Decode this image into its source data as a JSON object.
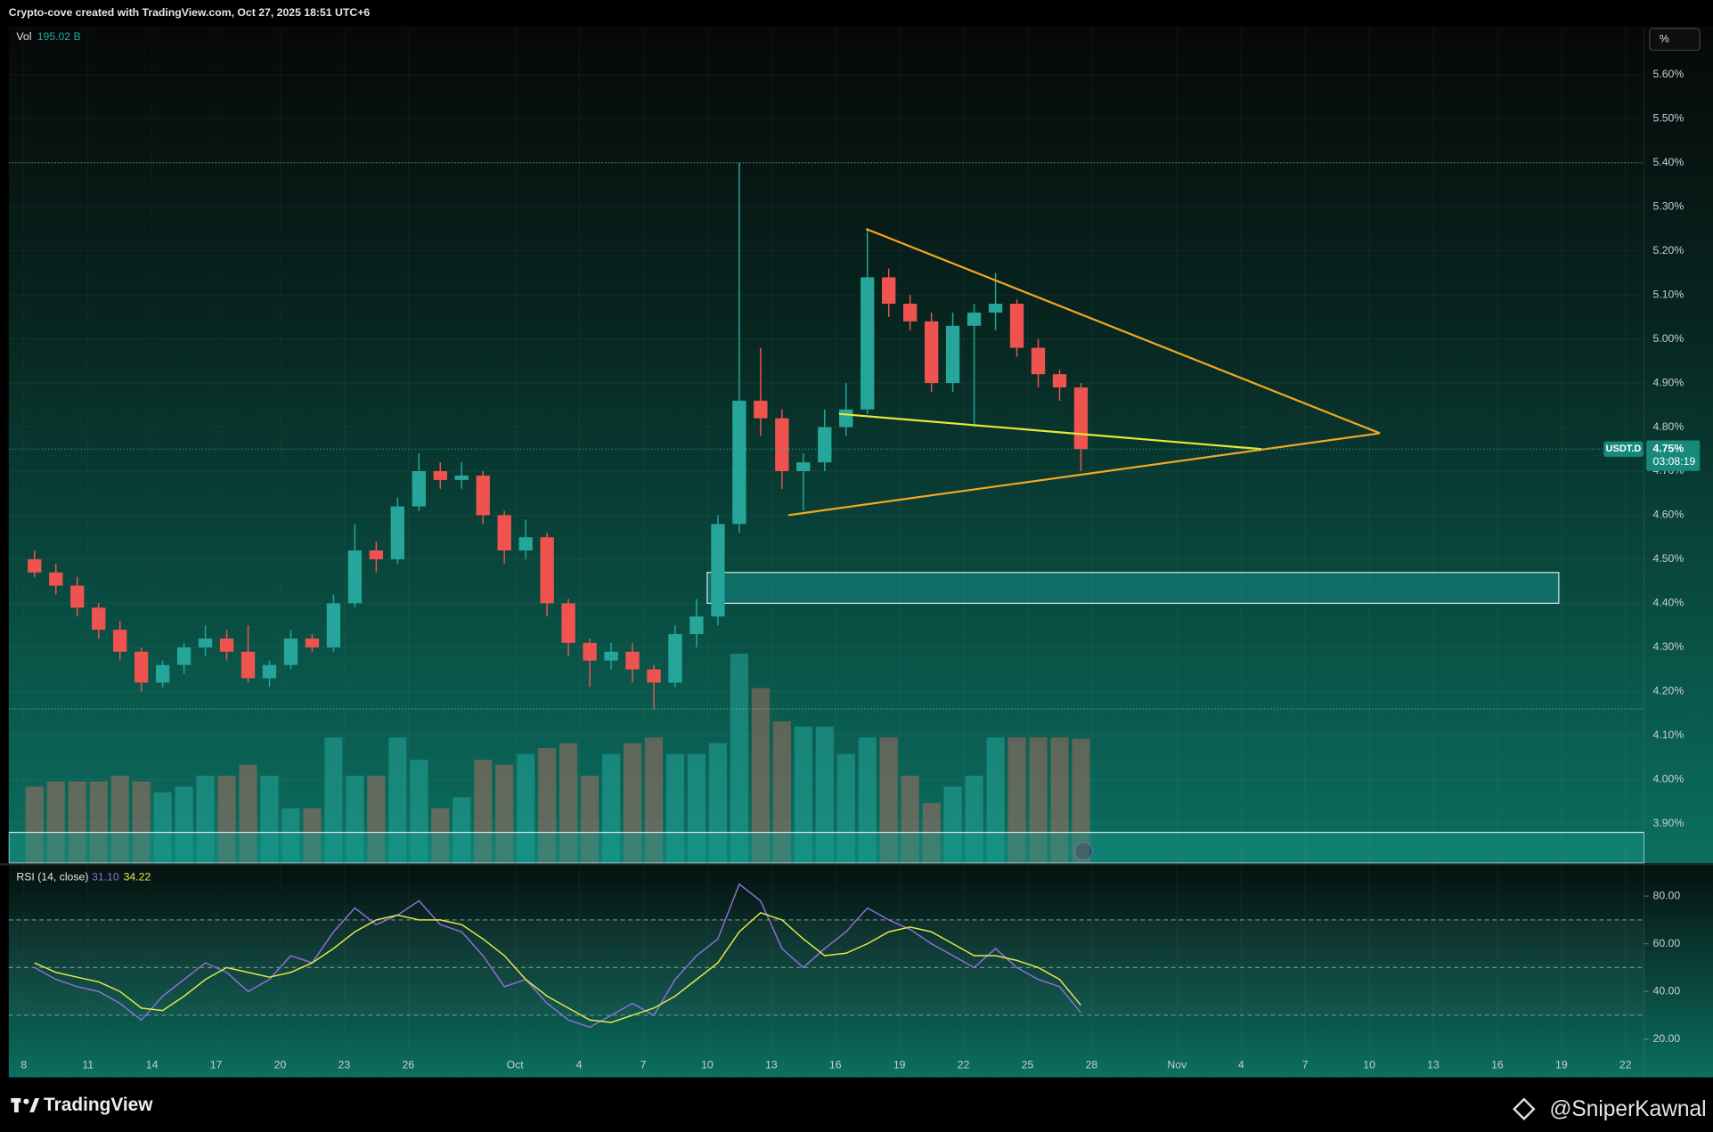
{
  "header": {
    "text": "Crypto-cove created with TradingView.com, Oct 27, 2025 18:51 UTC+6",
    "scale_button": "%"
  },
  "chart_data": [
    {
      "type": "candlestick",
      "symbol": "USDT.D",
      "price_label": "4.75%",
      "countdown": "03:08:19",
      "up_color": "#26a69a",
      "down_color": "#ef5350",
      "x": [
        "2025-09-08",
        "2025-09-09",
        "2025-09-10",
        "2025-09-11",
        "2025-09-12",
        "2025-09-13",
        "2025-09-14",
        "2025-09-15",
        "2025-09-16",
        "2025-09-17",
        "2025-09-18",
        "2025-09-19",
        "2025-09-20",
        "2025-09-21",
        "2025-09-22",
        "2025-09-23",
        "2025-09-24",
        "2025-09-25",
        "2025-09-26",
        "2025-09-27",
        "2025-09-28",
        "2025-09-29",
        "2025-09-30",
        "2025-10-01",
        "2025-10-02",
        "2025-10-03",
        "2025-10-04",
        "2025-10-05",
        "2025-10-06",
        "2025-10-07",
        "2025-10-08",
        "2025-10-09",
        "2025-10-10",
        "2025-10-11",
        "2025-10-12",
        "2025-10-13",
        "2025-10-14",
        "2025-10-15",
        "2025-10-16",
        "2025-10-17",
        "2025-10-18",
        "2025-10-19",
        "2025-10-20",
        "2025-10-21",
        "2025-10-22",
        "2025-10-23",
        "2025-10-24",
        "2025-10-25",
        "2025-10-26",
        "2025-10-27"
      ],
      "open": [
        4.5,
        4.47,
        4.44,
        4.39,
        4.34,
        4.29,
        4.22,
        4.26,
        4.3,
        4.32,
        4.29,
        4.23,
        4.26,
        4.32,
        4.3,
        4.4,
        4.52,
        4.5,
        4.62,
        4.7,
        4.68,
        4.69,
        4.6,
        4.52,
        4.55,
        4.4,
        4.31,
        4.27,
        4.29,
        4.25,
        4.22,
        4.33,
        4.37,
        4.58,
        4.86,
        4.82,
        4.7,
        4.72,
        4.8,
        4.84,
        5.14,
        5.08,
        5.04,
        4.9,
        5.03,
        5.06,
        5.08,
        4.98,
        4.92,
        4.89
      ],
      "high": [
        4.52,
        4.49,
        4.46,
        4.4,
        4.36,
        4.3,
        4.27,
        4.31,
        4.35,
        4.34,
        4.35,
        4.27,
        4.34,
        4.33,
        4.42,
        4.58,
        4.54,
        4.64,
        4.74,
        4.72,
        4.72,
        4.7,
        4.61,
        4.59,
        4.56,
        4.41,
        4.32,
        4.31,
        4.31,
        4.26,
        4.35,
        4.41,
        4.6,
        5.4,
        4.98,
        4.84,
        4.74,
        4.84,
        4.9,
        5.25,
        5.16,
        5.1,
        5.06,
        5.06,
        5.08,
        5.15,
        5.09,
        5.0,
        4.93,
        4.9
      ],
      "low": [
        4.46,
        4.42,
        4.37,
        4.32,
        4.27,
        4.2,
        4.21,
        4.24,
        4.28,
        4.27,
        4.22,
        4.21,
        4.25,
        4.29,
        4.29,
        4.39,
        4.47,
        4.49,
        4.61,
        4.66,
        4.66,
        4.58,
        4.49,
        4.5,
        4.37,
        4.28,
        4.21,
        4.25,
        4.22,
        4.16,
        4.21,
        4.3,
        4.35,
        4.56,
        4.78,
        4.66,
        4.61,
        4.7,
        4.78,
        4.83,
        5.05,
        5.02,
        4.88,
        4.88,
        4.8,
        5.02,
        4.96,
        4.89,
        4.86,
        4.7
      ],
      "close": [
        4.47,
        4.44,
        4.39,
        4.34,
        4.29,
        4.22,
        4.26,
        4.3,
        4.32,
        4.29,
        4.23,
        4.26,
        4.32,
        4.3,
        4.4,
        4.52,
        4.5,
        4.62,
        4.7,
        4.68,
        4.69,
        4.6,
        4.52,
        4.55,
        4.4,
        4.31,
        4.27,
        4.29,
        4.25,
        4.22,
        4.33,
        4.37,
        4.58,
        4.86,
        4.82,
        4.7,
        4.72,
        4.8,
        4.84,
        5.14,
        5.08,
        5.04,
        4.9,
        5.03,
        5.06,
        5.08,
        4.98,
        4.92,
        4.89,
        4.75
      ],
      "volume": {
        "name": "Vol",
        "legend_value": "195.02 B",
        "up_color": "rgba(38,166,154,0.55)",
        "down_color": "rgba(200,110,100,0.45)",
        "ylim": [
          0,
          1310
        ],
        "values": [
          120,
          128,
          128,
          128,
          137,
          128,
          111,
          120,
          137,
          137,
          154,
          137,
          86,
          86,
          197,
          137,
          137,
          197,
          162,
          86,
          103,
          162,
          154,
          171,
          180,
          188,
          137,
          171,
          188,
          197,
          171,
          171,
          188,
          328,
          274,
          222,
          214,
          214,
          171,
          197,
          197,
          137,
          94,
          120,
          137,
          197,
          197,
          197,
          197,
          195.02
        ]
      },
      "xlim": [
        "2025-09-07T07:00",
        "2025-11-22T21:00"
      ],
      "xticks": [
        {
          "value": "2025-09-08",
          "label": "8"
        },
        {
          "value": "2025-09-11",
          "label": "11"
        },
        {
          "value": "2025-09-14",
          "label": "14"
        },
        {
          "value": "2025-09-17",
          "label": "17"
        },
        {
          "value": "2025-09-20",
          "label": "20"
        },
        {
          "value": "2025-09-23",
          "label": "23"
        },
        {
          "value": "2025-09-26",
          "label": "26"
        },
        {
          "value": "2025-10-01",
          "label": "Oct"
        },
        {
          "value": "2025-10-04",
          "label": "4"
        },
        {
          "value": "2025-10-07",
          "label": "7"
        },
        {
          "value": "2025-10-10",
          "label": "10"
        },
        {
          "value": "2025-10-13",
          "label": "13"
        },
        {
          "value": "2025-10-16",
          "label": "16"
        },
        {
          "value": "2025-10-19",
          "label": "19"
        },
        {
          "value": "2025-10-22",
          "label": "22"
        },
        {
          "value": "2025-10-25",
          "label": "25"
        },
        {
          "value": "2025-10-28",
          "label": "28"
        },
        {
          "value": "2025-11-01",
          "label": "Nov"
        },
        {
          "value": "2025-11-04",
          "label": "4"
        },
        {
          "value": "2025-11-07",
          "label": "7"
        },
        {
          "value": "2025-11-10",
          "label": "10"
        },
        {
          "value": "2025-11-13",
          "label": "13"
        },
        {
          "value": "2025-11-16",
          "label": "16"
        },
        {
          "value": "2025-11-19",
          "label": "19"
        },
        {
          "value": "2025-11-22",
          "label": "22"
        }
      ],
      "ylim": [
        3.81,
        5.71
      ],
      "yticks": [
        {
          "value": 3.9,
          "label": "3.90%"
        },
        {
          "value": 4.0,
          "label": "4.00%"
        },
        {
          "value": 4.1,
          "label": "4.10%"
        },
        {
          "value": 4.2,
          "label": "4.20%"
        },
        {
          "value": 4.3,
          "label": "4.30%"
        },
        {
          "value": 4.4,
          "label": "4.40%"
        },
        {
          "value": 4.5,
          "label": "4.50%"
        },
        {
          "value": 4.6,
          "label": "4.60%"
        },
        {
          "value": 4.7,
          "label": "4.70%"
        },
        {
          "value": 4.8,
          "label": "4.80%"
        },
        {
          "value": 4.9,
          "label": "4.90%"
        },
        {
          "value": 5.0,
          "label": "5.00%"
        },
        {
          "value": 5.1,
          "label": "5.10%"
        },
        {
          "value": 5.2,
          "label": "5.20%"
        },
        {
          "value": 5.3,
          "label": "5.30%"
        },
        {
          "value": 5.4,
          "label": "5.40%"
        },
        {
          "value": 5.5,
          "label": "5.50%"
        },
        {
          "value": 5.6,
          "label": "5.60%"
        }
      ],
      "grid": true,
      "hlines": [
        {
          "value": 5.4
        },
        {
          "value": 4.16
        }
      ],
      "trendlines": [
        {
          "color": "#f5a623",
          "points": [
            [
              "2025-10-17T10:30",
              5.25
            ],
            [
              "2025-11-10T12:00",
              4.786
            ]
          ]
        },
        {
          "color": "#f5a623",
          "points": [
            [
              "2025-10-13T19:00",
              4.6
            ],
            [
              "2025-11-10T12:00",
              4.786
            ]
          ]
        },
        {
          "color": "#e8e83a",
          "points": [
            [
              "2025-10-16T04:00",
              4.83
            ],
            [
              "2025-11-04T23:00",
              4.75
            ]
          ]
        }
      ],
      "zones": [
        {
          "color": "rgba(20,140,135,0.55)",
          "stroke": "#d8e6e4",
          "x": [
            "2025-10-10T00:00",
            "2025-11-18T21:00"
          ],
          "y": [
            4.4,
            4.47
          ]
        },
        {
          "color": "rgba(20,150,140,0.45)",
          "stroke": "#d8e6e4",
          "x": [
            "2025-09-07T07:00",
            "2025-11-22T21:00"
          ],
          "y": [
            3.81,
            3.88
          ]
        }
      ]
    },
    {
      "type": "line",
      "title": "RSI (14, close)",
      "x": [
        "2025-09-08",
        "2025-09-09",
        "2025-09-10",
        "2025-09-11",
        "2025-09-12",
        "2025-09-13",
        "2025-09-14",
        "2025-09-15",
        "2025-09-16",
        "2025-09-17",
        "2025-09-18",
        "2025-09-19",
        "2025-09-20",
        "2025-09-21",
        "2025-09-22",
        "2025-09-23",
        "2025-09-24",
        "2025-09-25",
        "2025-09-26",
        "2025-09-27",
        "2025-09-28",
        "2025-09-29",
        "2025-09-30",
        "2025-10-01",
        "2025-10-02",
        "2025-10-03",
        "2025-10-04",
        "2025-10-05",
        "2025-10-06",
        "2025-10-07",
        "2025-10-08",
        "2025-10-09",
        "2025-10-10",
        "2025-10-11",
        "2025-10-12",
        "2025-10-13",
        "2025-10-14",
        "2025-10-15",
        "2025-10-16",
        "2025-10-17",
        "2025-10-18",
        "2025-10-19",
        "2025-10-20",
        "2025-10-21",
        "2025-10-22",
        "2025-10-23",
        "2025-10-24",
        "2025-10-25",
        "2025-10-26",
        "2025-10-27"
      ],
      "xlim": [
        "2025-09-07T07:00",
        "2025-11-22T21:00"
      ],
      "series": [
        {
          "color": "#8e6fd6",
          "value_label": "31.10",
          "values": [
            50,
            45,
            42,
            40,
            35,
            28,
            38,
            45,
            52,
            48,
            40,
            45,
            55,
            52,
            65,
            75,
            68,
            72,
            78,
            68,
            65,
            55,
            42,
            45,
            35,
            28,
            25,
            30,
            35,
            30,
            45,
            55,
            62,
            85,
            78,
            58,
            50,
            58,
            65,
            75,
            70,
            66,
            60,
            55,
            50,
            58,
            50,
            45,
            42,
            31.1
          ]
        },
        {
          "color": "#e6e84a",
          "value_label": "34.22",
          "values": [
            52,
            48,
            46,
            44,
            40,
            33,
            32,
            38,
            45,
            50,
            48,
            46,
            48,
            52,
            58,
            65,
            70,
            72,
            70,
            70,
            68,
            62,
            55,
            45,
            38,
            33,
            28,
            27,
            30,
            33,
            38,
            45,
            52,
            65,
            73,
            70,
            62,
            55,
            56,
            60,
            65,
            67,
            65,
            60,
            55,
            55,
            53,
            50,
            45,
            34.22
          ]
        }
      ],
      "ylim": [
        14.5,
        92.4
      ],
      "yticks": [
        {
          "value": 20,
          "label": "20.00"
        },
        {
          "value": 40,
          "label": "40.00"
        },
        {
          "value": 60,
          "label": "60.00"
        },
        {
          "value": 80,
          "label": "80.00"
        }
      ],
      "bands": [
        70,
        50,
        30
      ]
    }
  ],
  "footer": {
    "brand": "TradingView",
    "watermark": "@SniperKawnal"
  }
}
